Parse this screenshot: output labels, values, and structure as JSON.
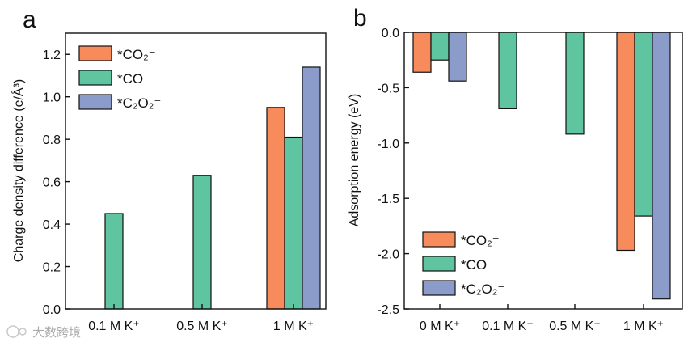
{
  "colors": {
    "co2": "#f88b5c",
    "co": "#5fc4a0",
    "c2o2": "#8b9ccb",
    "stroke": "#111111"
  },
  "watermark": "大数跨境",
  "chart_data": [
    {
      "panel_label": "a",
      "type": "bar",
      "categories": [
        "0.1 M K⁺",
        "0.5 M K⁺",
        "1 M K⁺"
      ],
      "series": [
        {
          "name": "*CO₂⁻",
          "color_key": "co2",
          "values": [
            null,
            null,
            0.95
          ]
        },
        {
          "name": "*CO",
          "color_key": "co",
          "values": [
            0.45,
            0.63,
            0.81
          ]
        },
        {
          "name": "*C₂O₂⁻",
          "color_key": "c2o2",
          "values": [
            null,
            null,
            1.14
          ]
        }
      ],
      "ylabel": "Charge density difference (e/Å³)",
      "xlabel": "",
      "ylim": [
        0,
        1.3
      ],
      "yticks": [
        0.0,
        0.2,
        0.4,
        0.6,
        0.8,
        1.0,
        1.2
      ],
      "ytick_labels": [
        "0.0",
        "0.2",
        "0.4",
        "0.6",
        "0.8",
        "1.0",
        "1.2"
      ],
      "legend_position": "top-left",
      "grid": false
    },
    {
      "panel_label": "b",
      "type": "bar",
      "categories": [
        "0 M K⁺",
        "0.1 M K⁺",
        "0.5 M K⁺",
        "1 M K⁺"
      ],
      "series": [
        {
          "name": "*CO₂⁻",
          "color_key": "co2",
          "values": [
            -0.36,
            null,
            null,
            -1.97
          ]
        },
        {
          "name": "*CO",
          "color_key": "co",
          "values": [
            -0.25,
            -0.69,
            -0.92,
            -1.66
          ]
        },
        {
          "name": "*C₂O₂⁻",
          "color_key": "c2o2",
          "values": [
            -0.44,
            null,
            null,
            -2.41
          ]
        }
      ],
      "ylabel": "Adsorption energy (eV)",
      "xlabel": "",
      "ylim": [
        -2.5,
        0.0
      ],
      "yticks": [
        0.0,
        -0.5,
        -1.0,
        -1.5,
        -2.0,
        -2.5
      ],
      "ytick_labels": [
        "0.0",
        "-0.5",
        "-1.0",
        "-1.5",
        "-2.0",
        "-2.5"
      ],
      "legend_position": "bottom-left",
      "grid": false
    }
  ]
}
